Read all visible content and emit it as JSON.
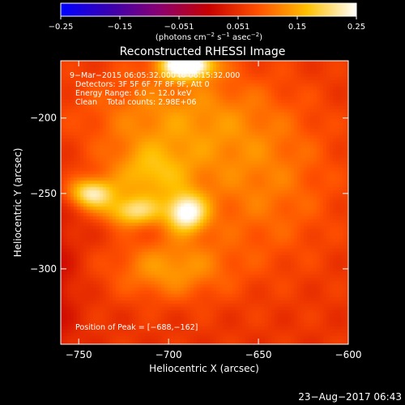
{
  "colorbar": {
    "ticks": [
      "−0.25",
      "−0.15",
      "−0.051",
      "0.051",
      "0.15",
      "0.25"
    ],
    "units_main": "(photons cm",
    "units_exp1": "−2",
    "units_mid": " s",
    "units_exp2": "−1",
    "units_end": " asec",
    "units_exp3": "−2",
    "units_close": ")"
  },
  "annotations": {
    "time_range": "9−Mar−2015 06:05:32.000 to 06:15:32.000",
    "detectors": "Detectors: 3F 5F 6F 7F 8F 9F, Att 0",
    "energy": "Energy Range: 6.0 − 12.0 keV",
    "clean": "Clean    Total counts: 2.98E+06",
    "peak": "Position of Peak = [−688,−162]"
  },
  "footer": {
    "timestamp": "23−Aug−2017 06:43"
  },
  "chart_data": {
    "type": "heatmap",
    "title": "Reconstructed RHESSI Image",
    "xlabel": "Heliocentric X (arcsec)",
    "ylabel": "Heliocentric Y (arcsec)",
    "xlim": [
      -760,
      -600
    ],
    "ylim": [
      -350,
      -162
    ],
    "xticks": [
      -750,
      -700,
      -650,
      -600
    ],
    "xtick_labels": [
      "−750",
      "−700",
      "−650",
      "−600"
    ],
    "yticks": [
      -200,
      -250,
      -300
    ],
    "ytick_labels": [
      "−200",
      "−250",
      "−300"
    ],
    "zlim": [
      -0.25,
      0.25
    ],
    "colormap": "sunset",
    "colormap_stops": [
      "#0000ff",
      "#3a00b0",
      "#8a0070",
      "#c80000",
      "#ff5000",
      "#ffc000",
      "#ffffff"
    ],
    "sources": [
      {
        "x": -690,
        "y": -165,
        "peak": 0.25,
        "sx": 10,
        "sy": 6
      },
      {
        "x": -743,
        "y": -250,
        "peak": 0.16,
        "sx": 9,
        "sy": 7
      },
      {
        "x": -720,
        "y": -262,
        "peak": 0.13,
        "sx": 11,
        "sy": 7
      },
      {
        "x": -690,
        "y": -263,
        "peak": 0.18,
        "sx": 8,
        "sy": 9
      },
      {
        "x": -710,
        "y": -238,
        "peak": 0.09,
        "sx": 16,
        "sy": 14
      },
      {
        "x": -700,
        "y": -300,
        "peak": 0.08,
        "sx": 22,
        "sy": 14
      },
      {
        "x": -650,
        "y": -240,
        "peak": 0.06,
        "sx": 30,
        "sy": 40
      },
      {
        "x": -700,
        "y": -200,
        "peak": 0.07,
        "sx": 34,
        "sy": 24
      }
    ],
    "background": 0.055,
    "dim_region": {
      "x": -775,
      "y": -310,
      "depth": -0.07,
      "sx": 14,
      "sy": 45
    }
  }
}
